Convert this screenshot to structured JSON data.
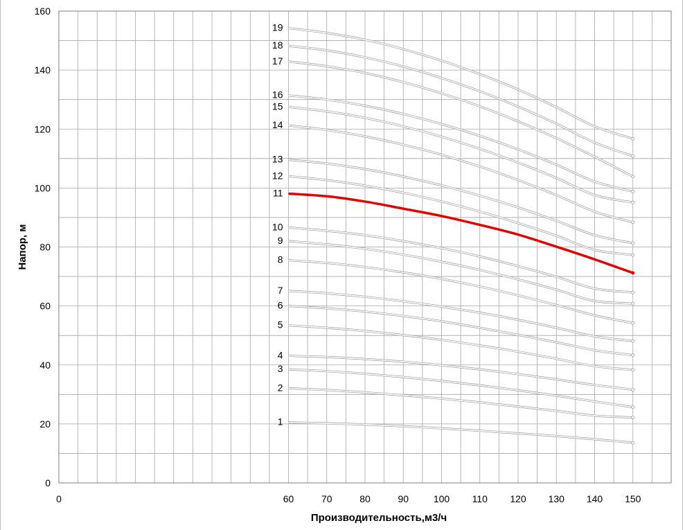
{
  "chart_data": {
    "type": "line",
    "xlabel": "Производительность,м3/ч",
    "ylabel": "Напор, м",
    "xlim": [
      0,
      160
    ],
    "ylim": [
      0,
      160
    ],
    "x_ticks": [
      0,
      60,
      70,
      80,
      90,
      100,
      110,
      120,
      130,
      140,
      150
    ],
    "y_ticks": [
      0,
      20,
      40,
      60,
      80,
      100,
      120,
      140,
      160
    ],
    "grid": true,
    "legend": "none",
    "colors": {
      "series": "#d0d0d0",
      "highlight": "#e00000",
      "grid": "#a6a6a6",
      "axis": "#7f7f7f"
    },
    "x": [
      60,
      70,
      80,
      90,
      100,
      110,
      120,
      130,
      140,
      150
    ],
    "highlight_series": "11",
    "series": [
      {
        "name": "1",
        "values": [
          20.5,
          20.2,
          19.8,
          19.2,
          18.5,
          17.7,
          16.8,
          15.9,
          14.8,
          13.6
        ]
      },
      {
        "name": "2",
        "values": [
          32.1,
          31.5,
          30.7,
          29.7,
          28.6,
          27.3,
          25.9,
          24.4,
          22.8,
          22.2
        ]
      },
      {
        "name": "3",
        "values": [
          38.5,
          37.9,
          37.0,
          35.9,
          34.6,
          33.1,
          31.4,
          29.6,
          27.6,
          25.7
        ]
      },
      {
        "name": "4",
        "values": [
          43.1,
          42.7,
          42.0,
          41.1,
          39.9,
          38.5,
          36.9,
          35.1,
          33.2,
          31.6
        ]
      },
      {
        "name": "5",
        "values": [
          53.4,
          52.6,
          51.5,
          50.1,
          48.5,
          46.6,
          44.5,
          42.1,
          39.6,
          38.3
        ]
      },
      {
        "name": "6",
        "values": [
          60.0,
          59.2,
          58.1,
          56.6,
          54.8,
          52.6,
          50.2,
          47.7,
          45.0,
          43.3
        ]
      },
      {
        "name": "7",
        "values": [
          65.1,
          64.3,
          63.1,
          61.6,
          59.8,
          57.7,
          55.3,
          52.6,
          49.7,
          48.1
        ]
      },
      {
        "name": "8",
        "values": [
          75.5,
          74.6,
          73.2,
          71.4,
          69.2,
          66.6,
          63.6,
          60.3,
          56.8,
          54.2
        ]
      },
      {
        "name": "9",
        "values": [
          82.0,
          80.9,
          79.4,
          77.4,
          75.0,
          72.2,
          69.0,
          65.5,
          61.7,
          60.8
        ]
      },
      {
        "name": "10",
        "values": [
          86.6,
          85.5,
          84.0,
          82.0,
          79.6,
          76.8,
          73.5,
          69.9,
          65.9,
          64.6
        ]
      },
      {
        "name": "11",
        "values": [
          98.1,
          97.2,
          95.4,
          93.0,
          90.5,
          87.5,
          84.2,
          80.1,
          75.8,
          71.2
        ]
      },
      {
        "name": "12",
        "values": [
          104.0,
          102.7,
          100.8,
          98.4,
          95.4,
          92.0,
          88.1,
          83.8,
          79.0,
          77.3
        ]
      },
      {
        "name": "13",
        "values": [
          109.6,
          108.3,
          106.4,
          103.9,
          100.9,
          97.4,
          93.4,
          88.9,
          84.0,
          81.3
        ]
      },
      {
        "name": "14",
        "values": [
          121.2,
          119.7,
          117.5,
          114.7,
          111.3,
          107.3,
          102.7,
          97.6,
          92.0,
          88.4
        ]
      },
      {
        "name": "15",
        "values": [
          127.5,
          126.0,
          123.8,
          120.9,
          117.4,
          113.3,
          108.6,
          103.4,
          97.6,
          95.1
        ]
      },
      {
        "name": "16",
        "values": [
          131.4,
          130.0,
          127.9,
          125.1,
          121.7,
          117.7,
          113.1,
          107.9,
          102.2,
          98.8
        ]
      },
      {
        "name": "17",
        "values": [
          142.9,
          141.3,
          139.0,
          135.9,
          132.1,
          127.7,
          122.6,
          116.9,
          110.6,
          103.9
        ]
      },
      {
        "name": "18",
        "values": [
          148.2,
          146.7,
          144.3,
          141.2,
          137.3,
          132.8,
          127.6,
          121.8,
          115.4,
          110.8
        ]
      },
      {
        "name": "19",
        "values": [
          154.2,
          152.6,
          150.3,
          147.1,
          143.2,
          138.6,
          133.4,
          127.4,
          120.9,
          116.7
        ]
      }
    ]
  }
}
